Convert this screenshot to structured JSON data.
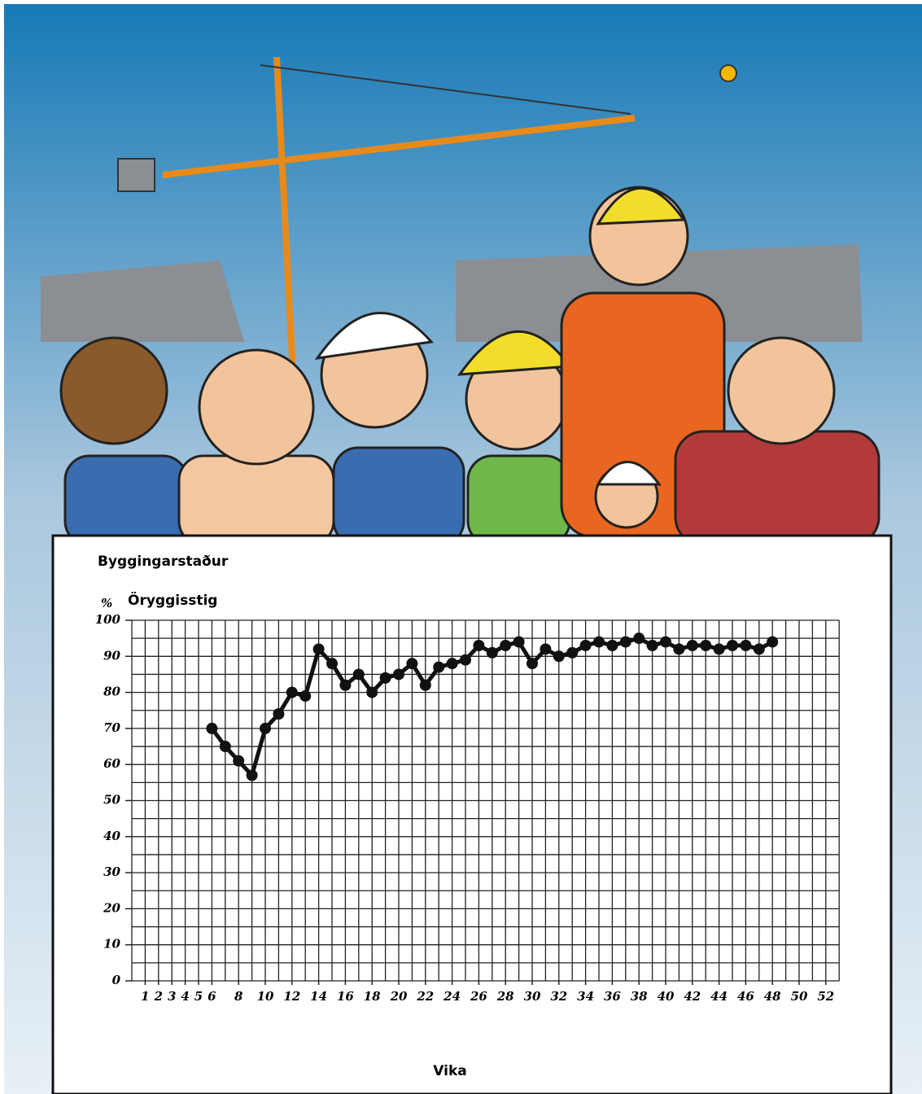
{
  "chart_data": {
    "type": "line",
    "title": "Byggingarstaður",
    "subtitle": "Öryggisstig",
    "y_label": "%",
    "x_label": "Vika",
    "x": [
      6,
      7,
      8,
      9,
      10,
      11,
      12,
      13,
      14,
      15,
      16,
      17,
      18,
      19,
      20,
      21,
      22,
      23,
      24,
      25,
      26,
      27,
      28,
      29,
      30,
      31,
      32,
      33,
      34,
      35,
      36,
      37,
      38,
      39,
      40,
      41,
      42,
      43,
      44,
      45,
      46,
      47,
      48
    ],
    "values": [
      70,
      65,
      61,
      57,
      70,
      74,
      80,
      79,
      92,
      88,
      82,
      85,
      80,
      84,
      85,
      88,
      82,
      87,
      88,
      89,
      93,
      91,
      93,
      94,
      88,
      92,
      90,
      91,
      93,
      94,
      93,
      94,
      95,
      93,
      94,
      92,
      93,
      93,
      92,
      93,
      93,
      92,
      94
    ],
    "color": "#111111",
    "xlim": [
      0,
      54
    ],
    "ylim": [
      0,
      100
    ],
    "xticks": [
      1,
      2,
      3,
      4,
      5,
      6,
      8,
      10,
      12,
      14,
      16,
      18,
      20,
      22,
      24,
      26,
      28,
      30,
      32,
      34,
      36,
      38,
      40,
      42,
      44,
      46,
      48,
      50,
      52
    ],
    "yticks": [
      0,
      10,
      20,
      30,
      40,
      50,
      60,
      70,
      80,
      90,
      100
    ],
    "x_gridlines": [
      0,
      1,
      2,
      3,
      4,
      5,
      6,
      7,
      8,
      9,
      10,
      11,
      12,
      13,
      14,
      15,
      16,
      17,
      18,
      19,
      20,
      21,
      22,
      23,
      24,
      25,
      26,
      27,
      28,
      29,
      30,
      31,
      32,
      33,
      34,
      35,
      36,
      37,
      38,
      39,
      40,
      41,
      42,
      43,
      44,
      45,
      46,
      47,
      48,
      49,
      50,
      51,
      52,
      53
    ],
    "y_gridlines": [
      0,
      5,
      10,
      15,
      20,
      25,
      30,
      35,
      40,
      45,
      50,
      55,
      60,
      65,
      70,
      75,
      80,
      85,
      90,
      95,
      100
    ],
    "grid": true
  }
}
